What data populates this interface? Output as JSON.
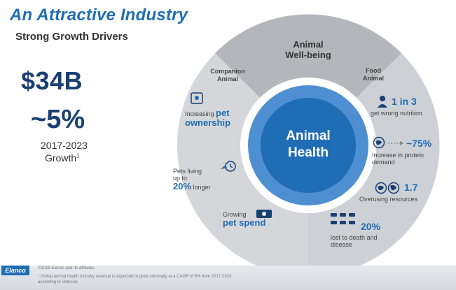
{
  "header": {
    "title": "An Attractive Industry",
    "subtitle": "Strong Growth Drivers"
  },
  "left_stats": {
    "market_size": "$34B",
    "growth_rate": "~5%",
    "period": "2017-2023",
    "growth_label": "Growth",
    "footnote_marker": "1"
  },
  "diagram": {
    "center": {
      "line1": "Animal",
      "line2": "Health"
    },
    "segments": {
      "top": {
        "line1": "Animal",
        "line2": "Well-being"
      },
      "left": {
        "line1": "Companion",
        "line2": "Animal"
      },
      "right": {
        "line1": "Food",
        "line2": "Animal"
      }
    },
    "companion_items": [
      {
        "text": "Increasing",
        "strong": "pet",
        "strong2": "ownership",
        "icon": "pet-ownership-icon"
      },
      {
        "text": "Pets living",
        "text2": "up to",
        "strong": "20%",
        "tail": "longer",
        "icon": "pet-longevity-icon"
      },
      {
        "text": "Growing",
        "strong": "pet spend",
        "icon": "money-icon"
      }
    ],
    "food_items": [
      {
        "value": "1 in 3",
        "desc": "get wrong nutrition",
        "icon": "person-icon"
      },
      {
        "value": "~75%",
        "desc1": "Increase in protein",
        "desc2": "demand",
        "icon": "globe-icon"
      },
      {
        "value": "1.7",
        "desc": "Overusing resources",
        "icon": "globe-icon"
      },
      {
        "value": "20%",
        "desc1": "lost to death and",
        "desc2": "disease",
        "icon": "livestock-icon"
      }
    ]
  },
  "footer": {
    "logo": "Elanco",
    "copyright": "©2019 Elanco and its affiliates",
    "note1": "¹ Global animal health industry revenue is expected to grow nominally at a CAGR of 5% from 2017-2023",
    "note2": "according to Vetnosis"
  },
  "colors": {
    "brand_blue": "#1f6db5",
    "dark_navy": "#1a3f73",
    "ring_gray": "#d4d6da",
    "top_segment_gray": "#b3b6bb"
  }
}
